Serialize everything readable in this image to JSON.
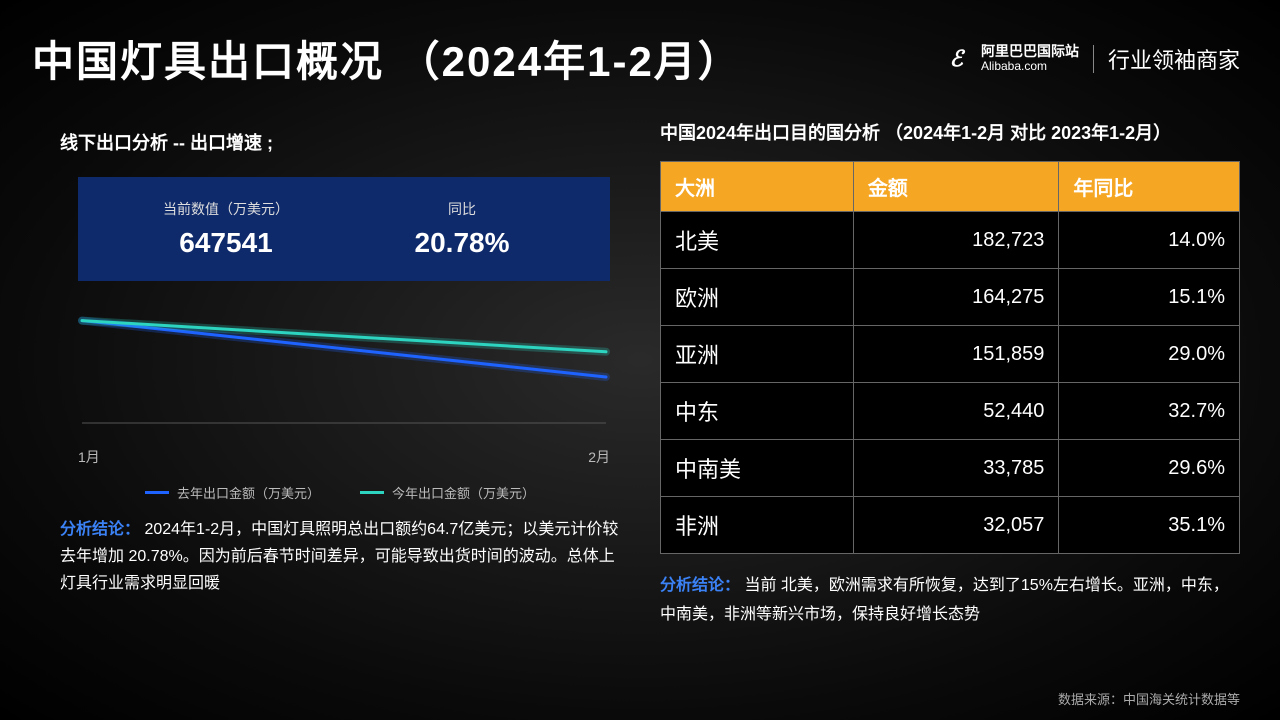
{
  "header": {
    "title": "中国灯具出口概况 （2024年1-2月）",
    "brand_cn": "阿里巴巴国际站",
    "brand_en": "Alibaba.com",
    "brand_tag": "行业领袖商家"
  },
  "left": {
    "chart_title": "线下出口分析 --  出口增速      ;",
    "stat": {
      "current_label": "当前数值（万美元）",
      "current_value": "647541",
      "yoy_label": "同比",
      "yoy_value": "20.78%"
    },
    "chart": {
      "type": "line",
      "background_color": "#000000",
      "axis_color": "#666666",
      "x_labels": [
        "1月",
        "2月"
      ],
      "series": [
        {
          "name": "去年出口金额（万美元）",
          "color": "#1e63ff",
          "glow": true,
          "points": [
            [
              0,
              0.82
            ],
            [
              1,
              0.35
            ]
          ]
        },
        {
          "name": "今年出口金额（万美元）",
          "color": "#2dd4bf",
          "glow": true,
          "points": [
            [
              0,
              0.82
            ],
            [
              1,
              0.56
            ]
          ]
        }
      ],
      "line_width": 3
    },
    "conclusion_label": "分析结论：",
    "conclusion_text": " 2024年1-2月，中国灯具照明总出口额约64.7亿美元；以美元计价较去年增加 20.78%。因为前后春节时间差异，可能导致出货时间的波动。总体上灯具行业需求明显回暖"
  },
  "right": {
    "subtitle": "中国2024年出口目的国分析 （2024年1-2月 对比 2023年1-2月）",
    "table": {
      "header_bg": "#f5a623",
      "columns": [
        "大洲",
        "金额",
        "年同比"
      ],
      "rows": [
        [
          "北美",
          "182,723",
          "14.0%"
        ],
        [
          "欧洲",
          "164,275",
          "15.1%"
        ],
        [
          "亚洲",
          "151,859",
          "29.0%"
        ],
        [
          "中东",
          "52,440",
          "32.7%"
        ],
        [
          "中南美",
          "33,785",
          "29.6%"
        ],
        [
          "非洲",
          "32,057",
          "35.1%"
        ]
      ]
    },
    "conclusion_label": "分析结论：",
    "conclusion_text": " 当前 北美，欧洲需求有所恢复，达到了15%左右增长。亚洲，中东，中南美，非洲等新兴市场，保持良好增长态势"
  },
  "source": "数据来源：中国海关统计数据等"
}
